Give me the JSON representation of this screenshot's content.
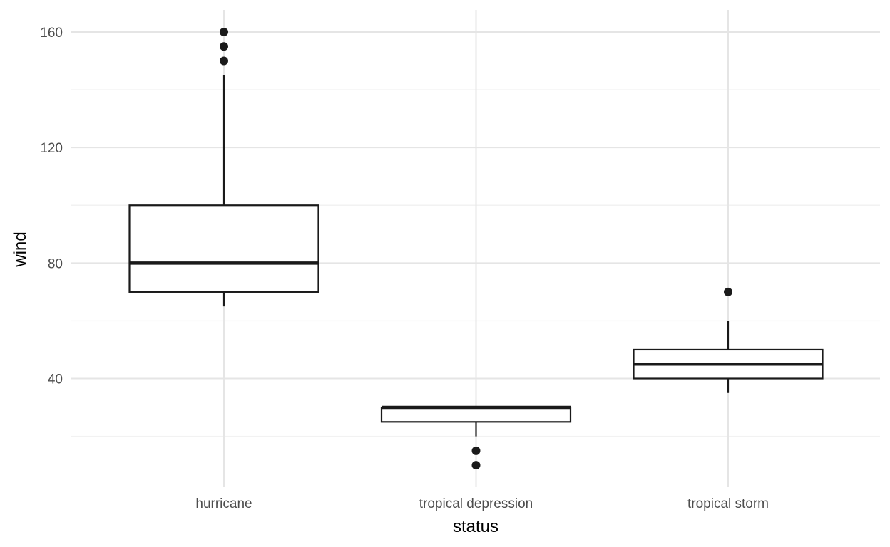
{
  "chart_data": {
    "type": "boxplot",
    "xlabel": "status",
    "ylabel": "wind",
    "categories": [
      "hurricane",
      "tropical depression",
      "tropical storm"
    ],
    "ylim": [
      5,
      163
    ],
    "y_major_ticks": [
      40,
      80,
      120,
      160
    ],
    "y_minor_ticks": [
      20,
      60,
      100,
      140
    ],
    "grid": true,
    "legend": "none",
    "boxes": [
      {
        "category": "hurricane",
        "whisker_low": 65,
        "q1": 70,
        "median": 80,
        "q3": 100,
        "whisker_high": 145,
        "outliers": [
          150,
          155,
          160
        ]
      },
      {
        "category": "tropical depression",
        "whisker_low": 20,
        "q1": 25,
        "median": 30,
        "q3": 30,
        "whisker_high": 30,
        "outliers": [
          15,
          10
        ]
      },
      {
        "category": "tropical storm",
        "whisker_low": 35,
        "q1": 40,
        "median": 45,
        "q3": 50,
        "whisker_high": 60,
        "outliers": [
          70
        ]
      }
    ],
    "colors": {
      "box_stroke": "#1a1a1a",
      "box_fill": "#ffffff",
      "outlier": "#1a1a1a",
      "grid_major": "#e5e5e5",
      "grid_minor": "#f2f2f2"
    }
  }
}
